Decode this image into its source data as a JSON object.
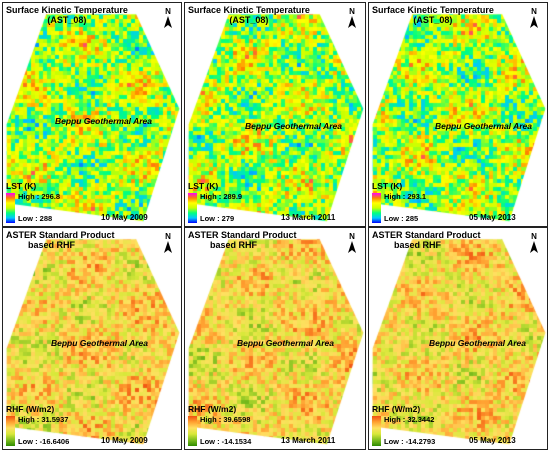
{
  "panels": [
    {
      "title_line1": "Surface Kinetic Temperature",
      "title_line2": "(AST_08)",
      "area_label": "Beppu Geothermal Area",
      "legend_title": "LST (K)",
      "high": "High : 296.8",
      "low": "Low : 288",
      "date": "10 May 2009",
      "north": "N",
      "palette": "lst"
    },
    {
      "title_line1": "Surface Kinetic Temperature",
      "title_line2": "(AST_08)",
      "area_label": "Beppu Geothermal Area",
      "legend_title": "LST (K)",
      "high": "High : 289.9",
      "low": "Low : 279",
      "date": "13 March 2011",
      "north": "N",
      "palette": "lst"
    },
    {
      "title_line1": "Surface Kinetic Temperature",
      "title_line2": "(AST_08)",
      "area_label": "Beppu Geothermal Area",
      "legend_title": "LST (K)",
      "high": "High : 293.1",
      "low": "Low : 285",
      "date": "05 May 2013",
      "north": "N",
      "palette": "lst"
    },
    {
      "title_line1": "ASTER Standard Product",
      "title_line2": "based RHF",
      "area_label": "Beppu Geothermal Area",
      "legend_title": "RHF (W/m2)",
      "high": "High : 31.5937",
      "low": "Low : -16.6406",
      "date": "10 May 2009",
      "north": "N",
      "palette": "rhf"
    },
    {
      "title_line1": "ASTER Standard Product",
      "title_line2": "based RHF",
      "area_label": "Beppu Geothermal Area",
      "legend_title": "RHF (W/m2)",
      "high": "High : 39.6598",
      "low": "Low : -14.1534",
      "date": "13 March 2011",
      "north": "N",
      "palette": "rhf"
    },
    {
      "title_line1": "ASTER Standard Product",
      "title_line2": "based RHF",
      "area_label": "Beppu Geothermal Area",
      "legend_title": "RHF (W/m2)",
      "high": "High : 32.3442",
      "low": "Low : -14.2793",
      "date": "05 May 2013",
      "north": "N",
      "palette": "rhf"
    }
  ],
  "palettes": {
    "lst": [
      "#0000ff",
      "#00c8ff",
      "#00ff80",
      "#c8ff00",
      "#ffff00",
      "#ff8000",
      "#ff00ff"
    ],
    "rhf": [
      "#2e8b00",
      "#7fbf20",
      "#d8e83a",
      "#ffe060",
      "#ffa030",
      "#f05010"
    ]
  }
}
